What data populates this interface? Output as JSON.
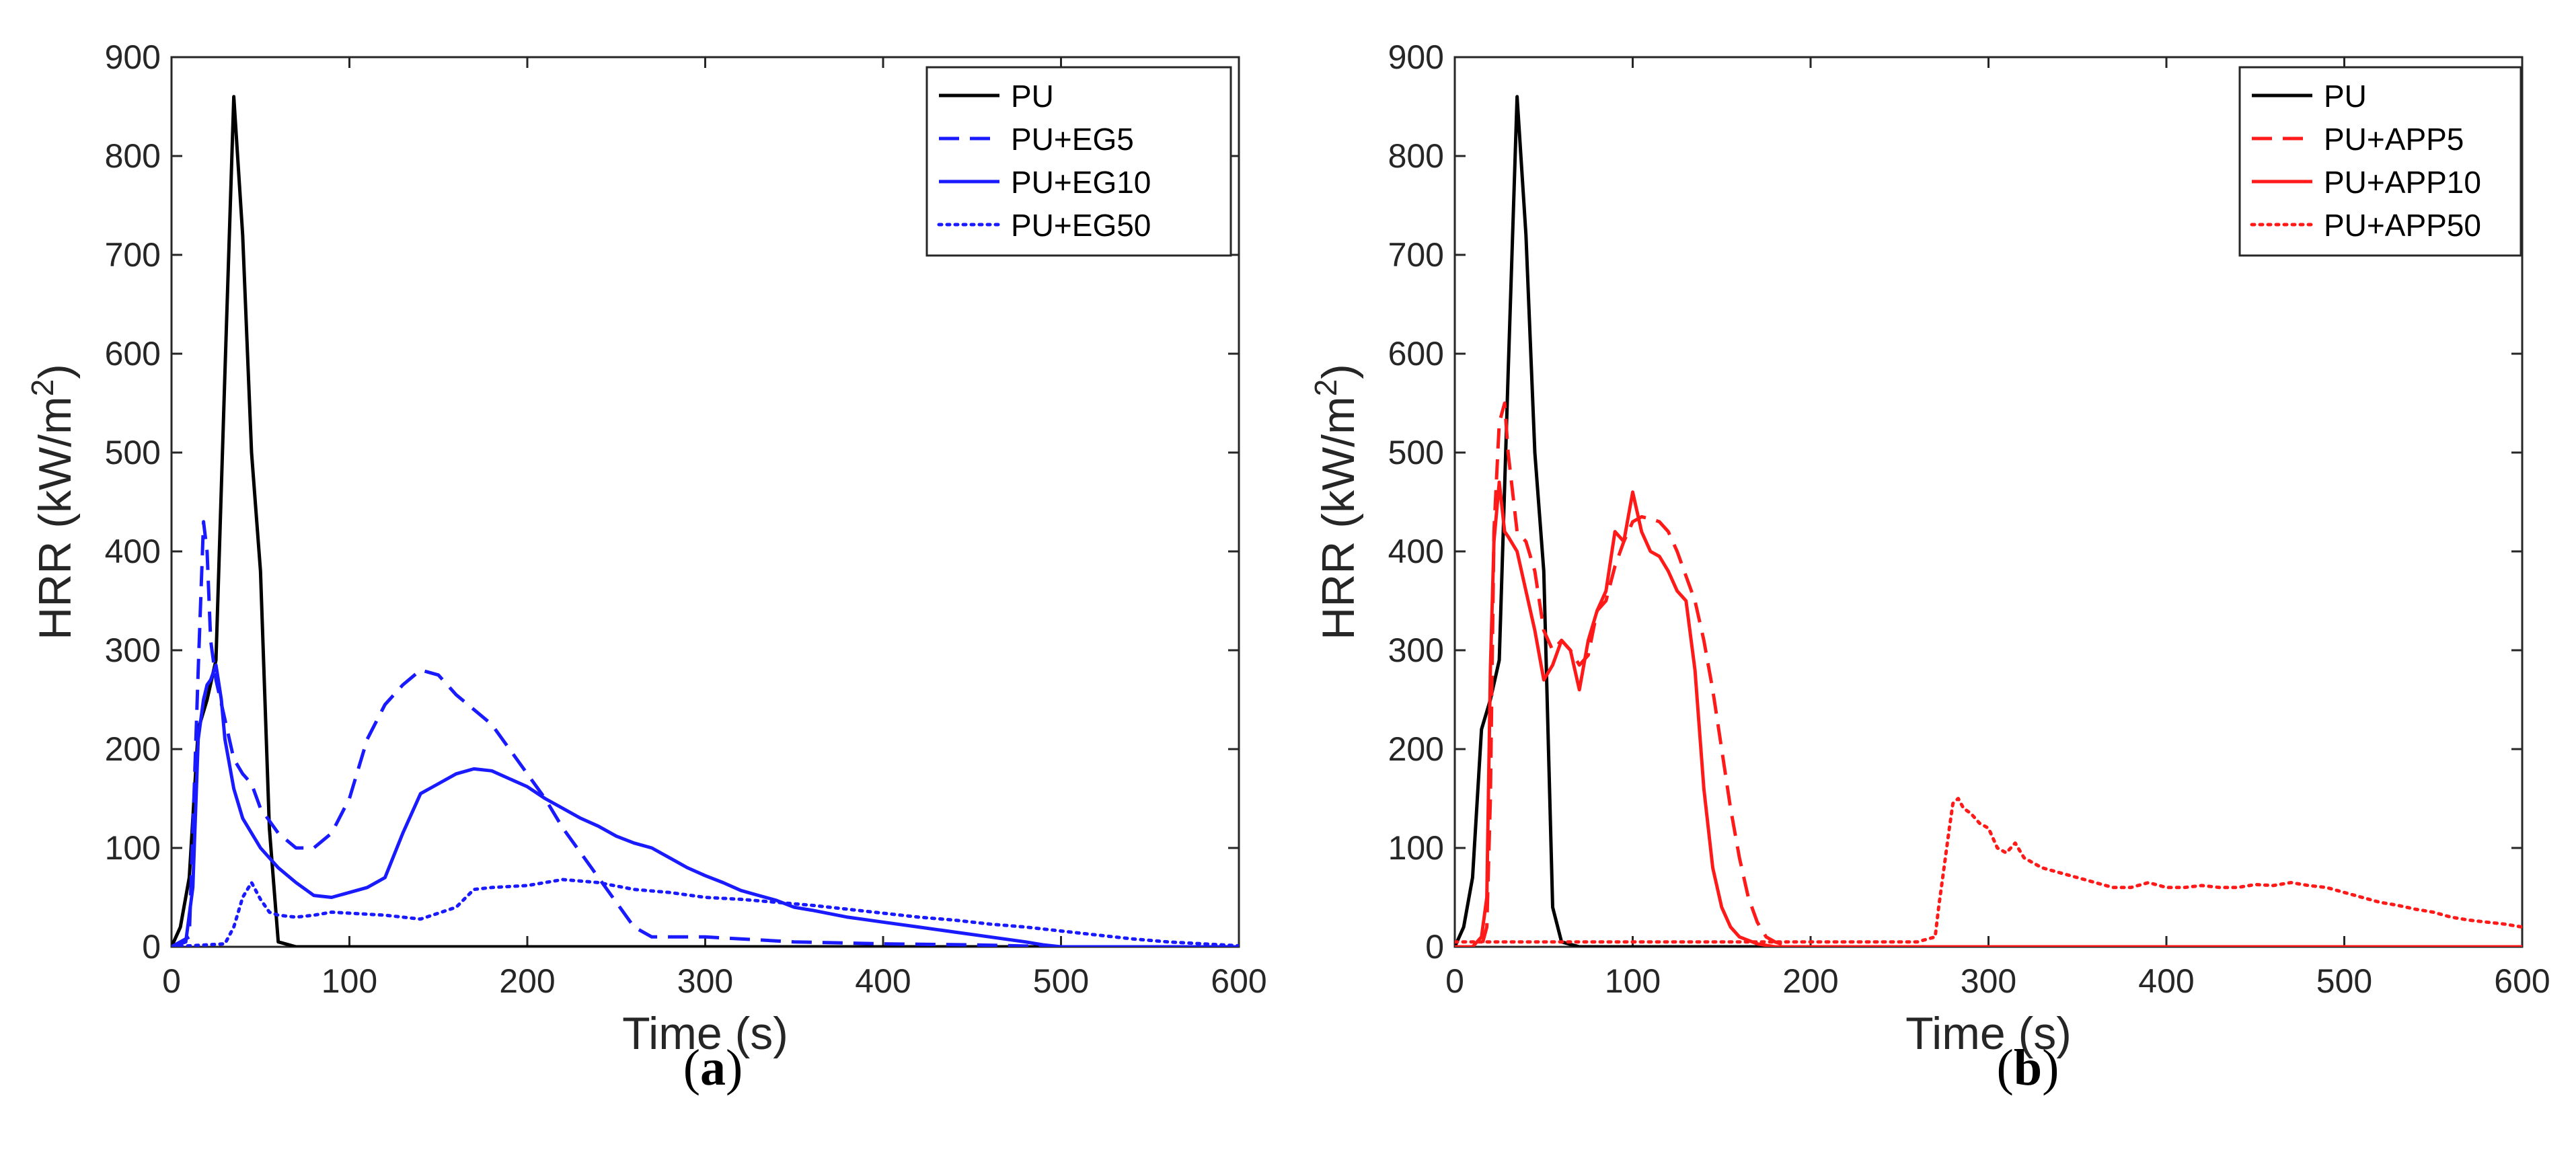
{
  "figure": {
    "panel_labels": [
      "a",
      "b"
    ]
  },
  "chart_data": [
    {
      "type": "line",
      "panel": "a",
      "xlabel": "Time (s)",
      "ylabel": "HRR (kW/m",
      "ylabel_superscript": "2",
      "ylabel_close": ")",
      "xlim": [
        0,
        600
      ],
      "ylim": [
        0,
        900
      ],
      "xticks": [
        0,
        100,
        200,
        300,
        400,
        500,
        600
      ],
      "yticks": [
        0,
        100,
        200,
        300,
        400,
        500,
        600,
        700,
        800,
        900
      ],
      "grid": false,
      "legend_position": "top-right",
      "series": [
        {
          "name": "PU",
          "color": "#000000",
          "style": "solid",
          "x": [
            0,
            5,
            10,
            15,
            20,
            25,
            30,
            35,
            40,
            45,
            50,
            55,
            60,
            70,
            100,
            200,
            300,
            400,
            500,
            600
          ],
          "y": [
            0,
            20,
            70,
            220,
            250,
            290,
            580,
            860,
            720,
            500,
            380,
            120,
            5,
            0,
            0,
            0,
            0,
            0,
            0,
            0
          ]
        },
        {
          "name": "PU+EG5",
          "color": "#1a1aff",
          "style": "dashed",
          "x": [
            0,
            10,
            15,
            18,
            20,
            22,
            25,
            30,
            35,
            40,
            45,
            50,
            60,
            70,
            80,
            90,
            100,
            110,
            120,
            130,
            140,
            150,
            160,
            170,
            180,
            190,
            200,
            210,
            220,
            230,
            240,
            250,
            260,
            270,
            300,
            350,
            400,
            450,
            500,
            600
          ],
          "y": [
            0,
            10,
            280,
            430,
            400,
            310,
            270,
            230,
            190,
            175,
            165,
            140,
            115,
            100,
            100,
            115,
            150,
            210,
            245,
            265,
            280,
            275,
            255,
            240,
            225,
            200,
            175,
            150,
            120,
            95,
            70,
            45,
            20,
            10,
            10,
            5,
            3,
            2,
            0,
            0
          ]
        },
        {
          "name": "PU+EG10",
          "color": "#1a1aff",
          "style": "solid",
          "x": [
            0,
            8,
            12,
            15,
            18,
            20,
            22,
            25,
            28,
            30,
            35,
            40,
            50,
            60,
            70,
            80,
            90,
            100,
            110,
            120,
            130,
            140,
            150,
            160,
            170,
            180,
            190,
            200,
            210,
            220,
            230,
            240,
            250,
            260,
            270,
            280,
            290,
            300,
            310,
            320,
            330,
            340,
            350,
            360,
            380,
            400,
            420,
            440,
            460,
            480,
            490,
            500,
            600
          ],
          "y": [
            0,
            5,
            60,
            210,
            250,
            265,
            270,
            285,
            250,
            210,
            160,
            130,
            100,
            80,
            65,
            52,
            50,
            55,
            60,
            70,
            115,
            155,
            165,
            175,
            180,
            178,
            170,
            162,
            150,
            140,
            130,
            122,
            112,
            105,
            100,
            90,
            80,
            72,
            65,
            57,
            52,
            47,
            40,
            37,
            30,
            25,
            20,
            15,
            10,
            5,
            2,
            0,
            0
          ]
        },
        {
          "name": "PU+EG50",
          "color": "#1a1aff",
          "style": "dotted",
          "x": [
            0,
            30,
            35,
            40,
            45,
            50,
            55,
            60,
            70,
            80,
            90,
            100,
            120,
            140,
            160,
            170,
            180,
            200,
            220,
            240,
            260,
            280,
            300,
            320,
            340,
            360,
            380,
            400,
            420,
            440,
            460,
            480,
            500,
            520,
            540,
            560,
            580,
            600
          ],
          "y": [
            0,
            3,
            20,
            50,
            65,
            48,
            35,
            32,
            30,
            32,
            35,
            34,
            32,
            28,
            40,
            58,
            60,
            62,
            68,
            65,
            58,
            55,
            50,
            48,
            45,
            42,
            38,
            34,
            30,
            27,
            23,
            20,
            16,
            12,
            8,
            5,
            3,
            1
          ]
        }
      ]
    },
    {
      "type": "line",
      "panel": "b",
      "xlabel": "Time (s)",
      "ylabel": "HRR (kW/m",
      "ylabel_superscript": "2",
      "ylabel_close": ")",
      "xlim": [
        0,
        600
      ],
      "ylim": [
        0,
        900
      ],
      "xticks": [
        0,
        100,
        200,
        300,
        400,
        500,
        600
      ],
      "yticks": [
        0,
        100,
        200,
        300,
        400,
        500,
        600,
        700,
        800,
        900
      ],
      "grid": false,
      "legend_position": "top-right",
      "series": [
        {
          "name": "PU",
          "color": "#000000",
          "style": "solid",
          "x": [
            0,
            5,
            10,
            15,
            20,
            25,
            30,
            35,
            40,
            45,
            50,
            55,
            60,
            70,
            100,
            200,
            300,
            400,
            500,
            600
          ],
          "y": [
            0,
            20,
            70,
            220,
            250,
            290,
            580,
            860,
            720,
            500,
            380,
            40,
            5,
            0,
            0,
            0,
            0,
            0,
            0,
            0
          ]
        },
        {
          "name": "PU+APP5",
          "color": "#ff1a1a",
          "style": "dashed",
          "x": [
            0,
            15,
            18,
            20,
            22,
            25,
            28,
            30,
            35,
            40,
            45,
            50,
            55,
            60,
            65,
            70,
            75,
            80,
            85,
            90,
            95,
            100,
            105,
            110,
            115,
            120,
            125,
            130,
            135,
            140,
            145,
            150,
            155,
            160,
            165,
            170,
            175,
            180,
            185,
            190,
            200,
            600
          ],
          "y": [
            0,
            0,
            20,
            150,
            420,
            530,
            550,
            500,
            420,
            410,
            380,
            320,
            300,
            310,
            300,
            285,
            295,
            340,
            350,
            385,
            410,
            430,
            435,
            433,
            430,
            420,
            400,
            375,
            350,
            310,
            260,
            200,
            140,
            90,
            50,
            25,
            10,
            5,
            2,
            0,
            0,
            0
          ]
        },
        {
          "name": "PU+APP10",
          "color": "#ff1a1a",
          "style": "solid",
          "x": [
            0,
            10,
            15,
            18,
            20,
            22,
            25,
            28,
            30,
            35,
            40,
            45,
            50,
            55,
            60,
            65,
            70,
            75,
            80,
            85,
            90,
            95,
            100,
            105,
            110,
            115,
            120,
            125,
            130,
            135,
            140,
            145,
            150,
            155,
            160,
            170,
            180,
            600
          ],
          "y": [
            0,
            0,
            10,
            50,
            280,
            410,
            470,
            420,
            415,
            400,
            360,
            320,
            270,
            285,
            310,
            300,
            260,
            310,
            340,
            360,
            420,
            410,
            460,
            420,
            400,
            395,
            380,
            360,
            350,
            280,
            160,
            80,
            40,
            20,
            10,
            3,
            0,
            0
          ]
        },
        {
          "name": "PU+APP50",
          "color": "#ff1a1a",
          "style": "dotted",
          "x": [
            0,
            100,
            200,
            260,
            270,
            272,
            275,
            278,
            280,
            283,
            286,
            290,
            295,
            300,
            305,
            310,
            315,
            320,
            330,
            340,
            350,
            360,
            370,
            380,
            390,
            400,
            410,
            420,
            430,
            440,
            450,
            460,
            470,
            480,
            490,
            500,
            510,
            520,
            530,
            540,
            550,
            560,
            570,
            580,
            590,
            600
          ],
          "y": [
            5,
            5,
            5,
            5,
            10,
            40,
            80,
            120,
            145,
            150,
            140,
            135,
            125,
            120,
            100,
            95,
            105,
            90,
            80,
            75,
            70,
            65,
            60,
            60,
            65,
            60,
            60,
            62,
            60,
            60,
            63,
            62,
            65,
            62,
            60,
            55,
            50,
            45,
            42,
            38,
            35,
            30,
            27,
            25,
            23,
            20
          ]
        }
      ]
    }
  ]
}
